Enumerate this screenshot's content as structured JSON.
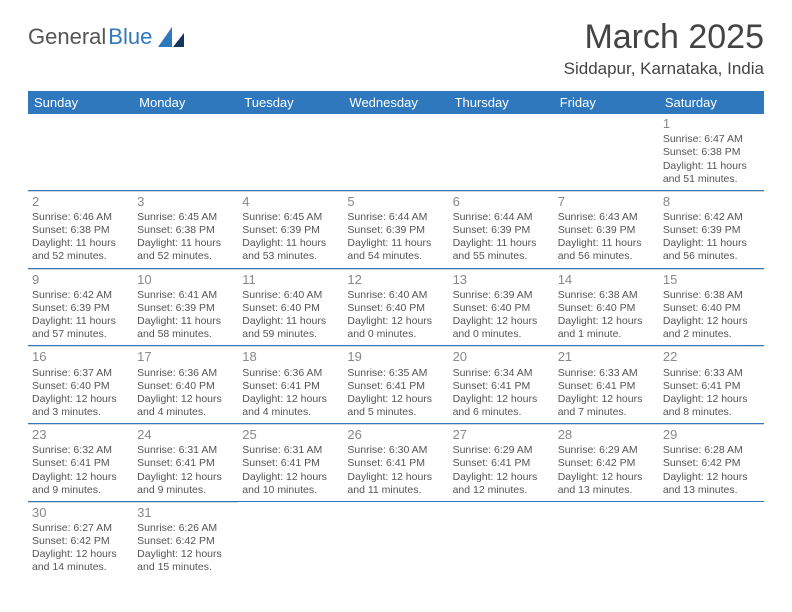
{
  "logo": {
    "text1": "General",
    "text2": "Blue"
  },
  "title": "March 2025",
  "location": "Siddapur, Karnataka, India",
  "colors": {
    "header_bg": "#2f78bd",
    "header_text": "#ffffff",
    "divider": "#2f78bd",
    "cell_border": "#d6d6d6",
    "daynum": "#888888",
    "body_text": "#555555"
  },
  "day_names": [
    "Sunday",
    "Monday",
    "Tuesday",
    "Wednesday",
    "Thursday",
    "Friday",
    "Saturday"
  ],
  "weeks": [
    [
      {
        "n": "",
        "sr": "",
        "ss": "",
        "dl": ""
      },
      {
        "n": "",
        "sr": "",
        "ss": "",
        "dl": ""
      },
      {
        "n": "",
        "sr": "",
        "ss": "",
        "dl": ""
      },
      {
        "n": "",
        "sr": "",
        "ss": "",
        "dl": ""
      },
      {
        "n": "",
        "sr": "",
        "ss": "",
        "dl": ""
      },
      {
        "n": "",
        "sr": "",
        "ss": "",
        "dl": ""
      },
      {
        "n": "1",
        "sr": "Sunrise: 6:47 AM",
        "ss": "Sunset: 6:38 PM",
        "dl": "Daylight: 11 hours and 51 minutes."
      }
    ],
    [
      {
        "n": "2",
        "sr": "Sunrise: 6:46 AM",
        "ss": "Sunset: 6:38 PM",
        "dl": "Daylight: 11 hours and 52 minutes."
      },
      {
        "n": "3",
        "sr": "Sunrise: 6:45 AM",
        "ss": "Sunset: 6:38 PM",
        "dl": "Daylight: 11 hours and 52 minutes."
      },
      {
        "n": "4",
        "sr": "Sunrise: 6:45 AM",
        "ss": "Sunset: 6:39 PM",
        "dl": "Daylight: 11 hours and 53 minutes."
      },
      {
        "n": "5",
        "sr": "Sunrise: 6:44 AM",
        "ss": "Sunset: 6:39 PM",
        "dl": "Daylight: 11 hours and 54 minutes."
      },
      {
        "n": "6",
        "sr": "Sunrise: 6:44 AM",
        "ss": "Sunset: 6:39 PM",
        "dl": "Daylight: 11 hours and 55 minutes."
      },
      {
        "n": "7",
        "sr": "Sunrise: 6:43 AM",
        "ss": "Sunset: 6:39 PM",
        "dl": "Daylight: 11 hours and 56 minutes."
      },
      {
        "n": "8",
        "sr": "Sunrise: 6:42 AM",
        "ss": "Sunset: 6:39 PM",
        "dl": "Daylight: 11 hours and 56 minutes."
      }
    ],
    [
      {
        "n": "9",
        "sr": "Sunrise: 6:42 AM",
        "ss": "Sunset: 6:39 PM",
        "dl": "Daylight: 11 hours and 57 minutes."
      },
      {
        "n": "10",
        "sr": "Sunrise: 6:41 AM",
        "ss": "Sunset: 6:39 PM",
        "dl": "Daylight: 11 hours and 58 minutes."
      },
      {
        "n": "11",
        "sr": "Sunrise: 6:40 AM",
        "ss": "Sunset: 6:40 PM",
        "dl": "Daylight: 11 hours and 59 minutes."
      },
      {
        "n": "12",
        "sr": "Sunrise: 6:40 AM",
        "ss": "Sunset: 6:40 PM",
        "dl": "Daylight: 12 hours and 0 minutes."
      },
      {
        "n": "13",
        "sr": "Sunrise: 6:39 AM",
        "ss": "Sunset: 6:40 PM",
        "dl": "Daylight: 12 hours and 0 minutes."
      },
      {
        "n": "14",
        "sr": "Sunrise: 6:38 AM",
        "ss": "Sunset: 6:40 PM",
        "dl": "Daylight: 12 hours and 1 minute."
      },
      {
        "n": "15",
        "sr": "Sunrise: 6:38 AM",
        "ss": "Sunset: 6:40 PM",
        "dl": "Daylight: 12 hours and 2 minutes."
      }
    ],
    [
      {
        "n": "16",
        "sr": "Sunrise: 6:37 AM",
        "ss": "Sunset: 6:40 PM",
        "dl": "Daylight: 12 hours and 3 minutes."
      },
      {
        "n": "17",
        "sr": "Sunrise: 6:36 AM",
        "ss": "Sunset: 6:40 PM",
        "dl": "Daylight: 12 hours and 4 minutes."
      },
      {
        "n": "18",
        "sr": "Sunrise: 6:36 AM",
        "ss": "Sunset: 6:41 PM",
        "dl": "Daylight: 12 hours and 4 minutes."
      },
      {
        "n": "19",
        "sr": "Sunrise: 6:35 AM",
        "ss": "Sunset: 6:41 PM",
        "dl": "Daylight: 12 hours and 5 minutes."
      },
      {
        "n": "20",
        "sr": "Sunrise: 6:34 AM",
        "ss": "Sunset: 6:41 PM",
        "dl": "Daylight: 12 hours and 6 minutes."
      },
      {
        "n": "21",
        "sr": "Sunrise: 6:33 AM",
        "ss": "Sunset: 6:41 PM",
        "dl": "Daylight: 12 hours and 7 minutes."
      },
      {
        "n": "22",
        "sr": "Sunrise: 6:33 AM",
        "ss": "Sunset: 6:41 PM",
        "dl": "Daylight: 12 hours and 8 minutes."
      }
    ],
    [
      {
        "n": "23",
        "sr": "Sunrise: 6:32 AM",
        "ss": "Sunset: 6:41 PM",
        "dl": "Daylight: 12 hours and 9 minutes."
      },
      {
        "n": "24",
        "sr": "Sunrise: 6:31 AM",
        "ss": "Sunset: 6:41 PM",
        "dl": "Daylight: 12 hours and 9 minutes."
      },
      {
        "n": "25",
        "sr": "Sunrise: 6:31 AM",
        "ss": "Sunset: 6:41 PM",
        "dl": "Daylight: 12 hours and 10 minutes."
      },
      {
        "n": "26",
        "sr": "Sunrise: 6:30 AM",
        "ss": "Sunset: 6:41 PM",
        "dl": "Daylight: 12 hours and 11 minutes."
      },
      {
        "n": "27",
        "sr": "Sunrise: 6:29 AM",
        "ss": "Sunset: 6:41 PM",
        "dl": "Daylight: 12 hours and 12 minutes."
      },
      {
        "n": "28",
        "sr": "Sunrise: 6:29 AM",
        "ss": "Sunset: 6:42 PM",
        "dl": "Daylight: 12 hours and 13 minutes."
      },
      {
        "n": "29",
        "sr": "Sunrise: 6:28 AM",
        "ss": "Sunset: 6:42 PM",
        "dl": "Daylight: 12 hours and 13 minutes."
      }
    ],
    [
      {
        "n": "30",
        "sr": "Sunrise: 6:27 AM",
        "ss": "Sunset: 6:42 PM",
        "dl": "Daylight: 12 hours and 14 minutes."
      },
      {
        "n": "31",
        "sr": "Sunrise: 6:26 AM",
        "ss": "Sunset: 6:42 PM",
        "dl": "Daylight: 12 hours and 15 minutes."
      },
      {
        "n": "",
        "sr": "",
        "ss": "",
        "dl": ""
      },
      {
        "n": "",
        "sr": "",
        "ss": "",
        "dl": ""
      },
      {
        "n": "",
        "sr": "",
        "ss": "",
        "dl": ""
      },
      {
        "n": "",
        "sr": "",
        "ss": "",
        "dl": ""
      },
      {
        "n": "",
        "sr": "",
        "ss": "",
        "dl": ""
      }
    ]
  ]
}
